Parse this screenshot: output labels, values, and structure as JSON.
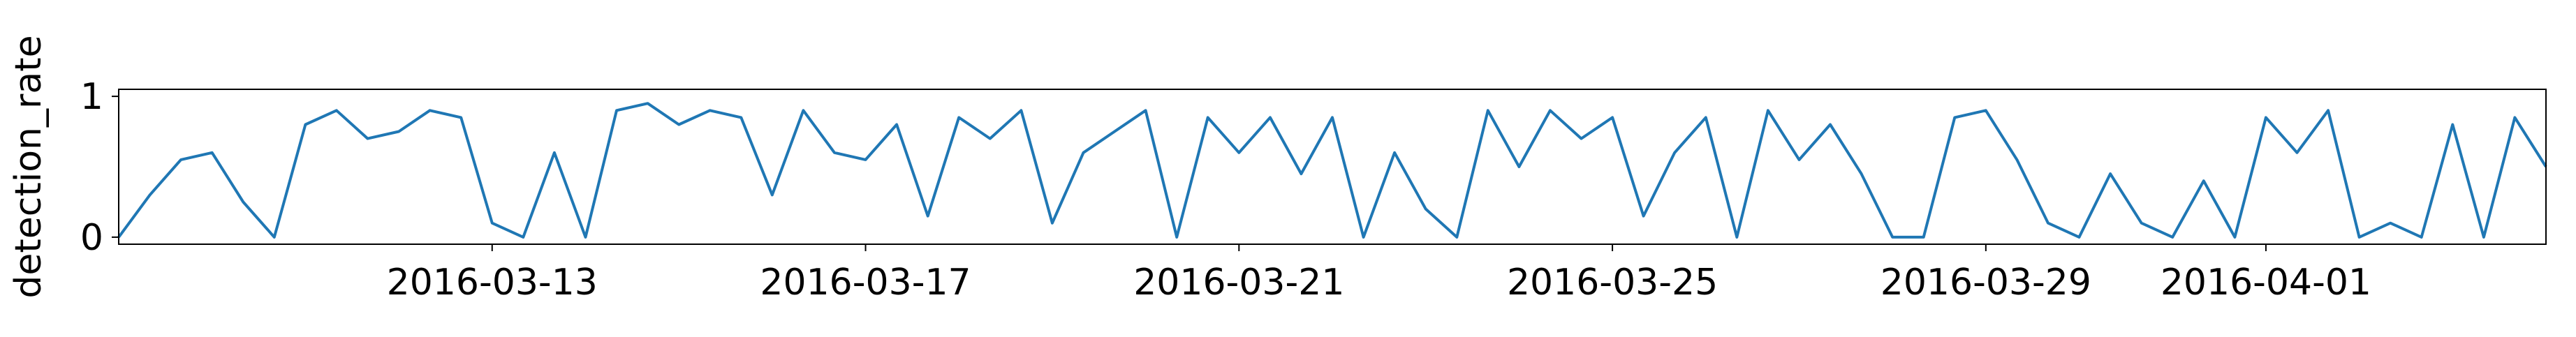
{
  "chart_data": {
    "type": "line",
    "title": "",
    "xlabel": "",
    "ylabel": "detection_rate",
    "x_start": "2016-03-09",
    "x_end": "2016-04-04",
    "xlim": [
      "2016-03-09",
      "2016-04-04"
    ],
    "ylim": [
      -0.05,
      1.05
    ],
    "grid": false,
    "legend": "none",
    "x_ticks": [
      {
        "date": "2016-03-13",
        "label": "2016-03-13"
      },
      {
        "date": "2016-03-17",
        "label": "2016-03-17"
      },
      {
        "date": "2016-03-21",
        "label": "2016-03-21"
      },
      {
        "date": "2016-03-25",
        "label": "2016-03-25"
      },
      {
        "date": "2016-03-29",
        "label": "2016-03-29"
      },
      {
        "date": "2016-04-01",
        "label": "2016-04-01"
      }
    ],
    "y_ticks": [
      {
        "value": 0,
        "label": "0"
      },
      {
        "value": 1,
        "label": "1"
      }
    ],
    "series": [
      {
        "color": "#1f77b4",
        "x": [
          "2016-03-09T00:00",
          "2016-03-09T08:00",
          "2016-03-09T16:00",
          "2016-03-10T00:00",
          "2016-03-10T08:00",
          "2016-03-10T16:00",
          "2016-03-11T00:00",
          "2016-03-11T08:00",
          "2016-03-11T16:00",
          "2016-03-12T00:00",
          "2016-03-12T08:00",
          "2016-03-12T16:00",
          "2016-03-13T00:00",
          "2016-03-13T08:00",
          "2016-03-13T16:00",
          "2016-03-14T00:00",
          "2016-03-14T08:00",
          "2016-03-14T16:00",
          "2016-03-15T00:00",
          "2016-03-15T08:00",
          "2016-03-15T16:00",
          "2016-03-16T00:00",
          "2016-03-16T08:00",
          "2016-03-16T16:00",
          "2016-03-17T00:00",
          "2016-03-17T08:00",
          "2016-03-17T16:00",
          "2016-03-18T00:00",
          "2016-03-18T08:00",
          "2016-03-18T16:00",
          "2016-03-19T00:00",
          "2016-03-19T08:00",
          "2016-03-19T16:00",
          "2016-03-20T00:00",
          "2016-03-20T08:00",
          "2016-03-20T16:00",
          "2016-03-21T00:00",
          "2016-03-21T08:00",
          "2016-03-21T16:00",
          "2016-03-22T00:00",
          "2016-03-22T08:00",
          "2016-03-22T16:00",
          "2016-03-23T00:00",
          "2016-03-23T08:00",
          "2016-03-23T16:00",
          "2016-03-24T00:00",
          "2016-03-24T08:00",
          "2016-03-24T16:00",
          "2016-03-25T00:00",
          "2016-03-25T08:00",
          "2016-03-25T16:00",
          "2016-03-26T00:00",
          "2016-03-26T08:00",
          "2016-03-26T16:00",
          "2016-03-27T00:00",
          "2016-03-27T08:00",
          "2016-03-27T16:00",
          "2016-03-28T00:00",
          "2016-03-28T08:00",
          "2016-03-28T16:00",
          "2016-03-29T00:00",
          "2016-03-29T08:00",
          "2016-03-29T16:00",
          "2016-03-30T00:00",
          "2016-03-30T08:00",
          "2016-03-30T16:00",
          "2016-03-31T00:00",
          "2016-03-31T08:00",
          "2016-03-31T16:00",
          "2016-04-01T00:00",
          "2016-04-01T08:00",
          "2016-04-01T16:00",
          "2016-04-02T00:00",
          "2016-04-02T08:00",
          "2016-04-02T16:00",
          "2016-04-03T00:00",
          "2016-04-03T08:00",
          "2016-04-03T16:00",
          "2016-04-04T00:00"
        ],
        "y": [
          0.0,
          0.3,
          0.55,
          0.6,
          0.25,
          0.0,
          0.8,
          0.9,
          0.7,
          0.75,
          0.9,
          0.85,
          0.1,
          0.0,
          0.6,
          0.0,
          0.9,
          0.95,
          0.8,
          0.9,
          0.85,
          0.3,
          0.9,
          0.6,
          0.55,
          0.8,
          0.15,
          0.85,
          0.7,
          0.9,
          0.1,
          0.6,
          0.75,
          0.9,
          0.0,
          0.85,
          0.6,
          0.85,
          0.45,
          0.85,
          0.0,
          0.6,
          0.2,
          0.0,
          0.9,
          0.5,
          0.9,
          0.7,
          0.85,
          0.15,
          0.6,
          0.85,
          0.0,
          0.9,
          0.55,
          0.8,
          0.45,
          0.0,
          0.0,
          0.85,
          0.9,
          0.55,
          0.1,
          0.0,
          0.45,
          0.1,
          0.0,
          0.4,
          0.0,
          0.85,
          0.6,
          0.9,
          0.0,
          0.1,
          0.0,
          0.8,
          0.0,
          0.85,
          0.5
        ]
      }
    ]
  }
}
